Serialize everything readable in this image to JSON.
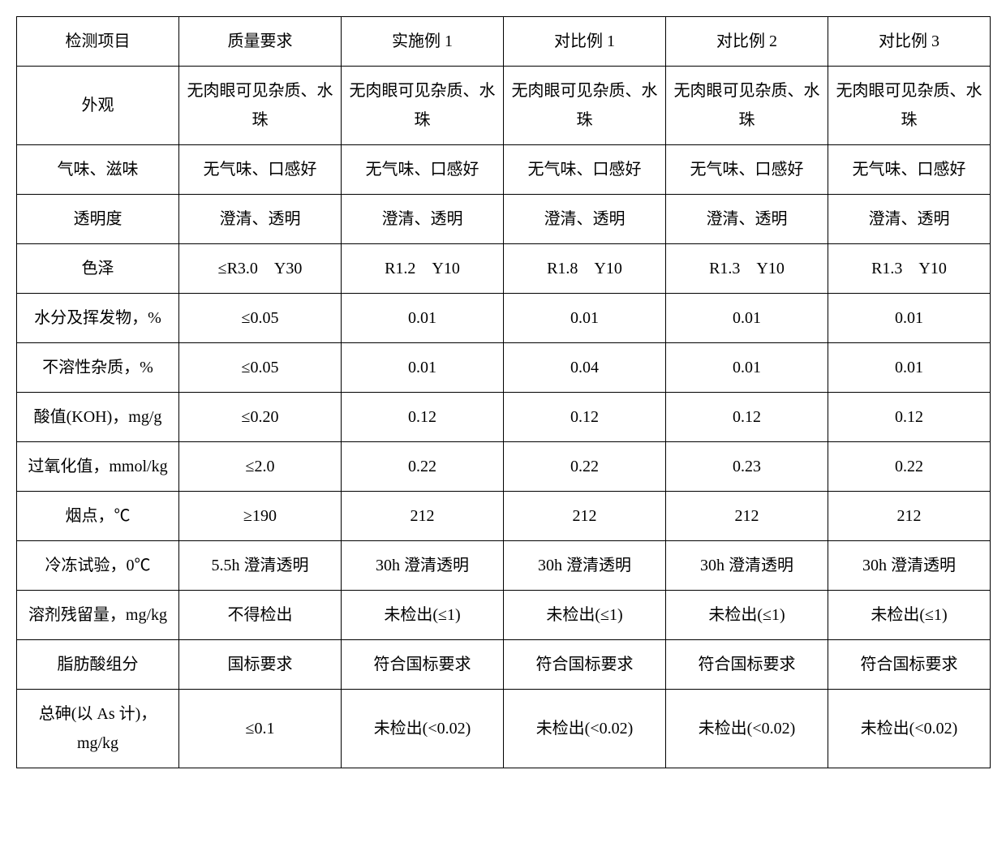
{
  "table": {
    "columns": [
      "检测项目",
      "质量要求",
      "实施例 1",
      "对比例 1",
      "对比例 2",
      "对比例 3"
    ],
    "rows": [
      [
        "外观",
        "无肉眼可见杂质、水珠",
        "无肉眼可见杂质、水珠",
        "无肉眼可见杂质、水珠",
        "无肉眼可见杂质、水珠",
        "无肉眼可见杂质、水珠"
      ],
      [
        "气味、滋味",
        "无气味、口感好",
        "无气味、口感好",
        "无气味、口感好",
        "无气味、口感好",
        "无气味、口感好"
      ],
      [
        "透明度",
        "澄清、透明",
        "澄清、透明",
        "澄清、透明",
        "澄清、透明",
        "澄清、透明"
      ],
      [
        "色泽",
        "≤R3.0　Y30",
        "R1.2　Y10",
        "R1.8　Y10",
        "R1.3　Y10",
        "R1.3　Y10"
      ],
      [
        "水分及挥发物，%",
        "≤0.05",
        "0.01",
        "0.01",
        "0.01",
        "0.01"
      ],
      [
        "不溶性杂质，%",
        "≤0.05",
        "0.01",
        "0.04",
        "0.01",
        "0.01"
      ],
      [
        "酸值(KOH)，mg/g",
        "≤0.20",
        "0.12",
        "0.12",
        "0.12",
        "0.12"
      ],
      [
        "过氧化值，mmol/kg",
        "≤2.0",
        "0.22",
        "0.22",
        "0.23",
        "0.22"
      ],
      [
        "烟点，℃",
        "≥190",
        "212",
        "212",
        "212",
        "212"
      ],
      [
        "冷冻试验，0℃",
        "5.5h 澄清透明",
        "30h 澄清透明",
        "30h 澄清透明",
        "30h 澄清透明",
        "30h 澄清透明"
      ],
      [
        "溶剂残留量，mg/kg",
        "不得检出",
        "未检出(≤1)",
        "未检出(≤1)",
        "未检出(≤1)",
        "未检出(≤1)"
      ],
      [
        "脂肪酸组分",
        "国标要求",
        "符合国标要求",
        "符合国标要求",
        "符合国标要求",
        "符合国标要求"
      ],
      [
        "总砷(以 As 计)，mg/kg",
        "≤0.1",
        "未检出(<0.02)",
        "未检出(<0.02)",
        "未检出(<0.02)",
        "未检出(<0.02)"
      ]
    ],
    "border_color": "#000000",
    "background_color": "#ffffff",
    "text_color": "#000000",
    "font_size": 20
  }
}
